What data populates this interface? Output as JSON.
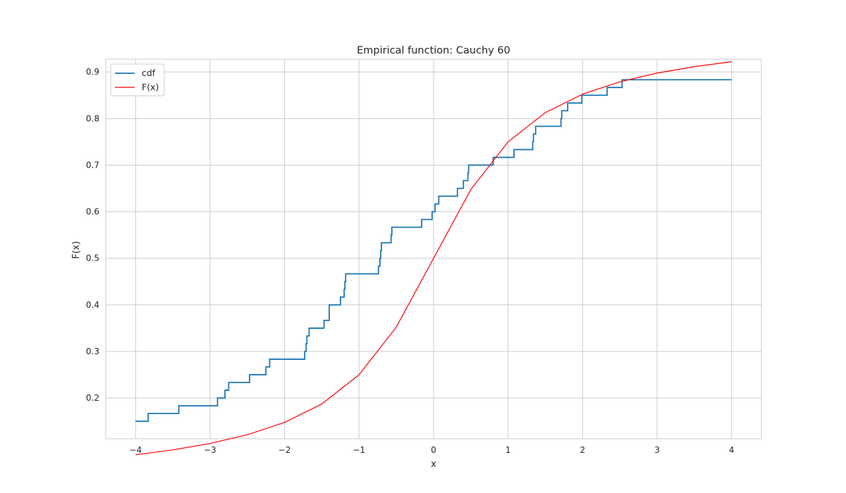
{
  "chart_data": {
    "type": "line",
    "title": "Empirical function: Cauchy 60",
    "xlabel": "x",
    "ylabel": "F(x)",
    "xlim": [
      -4.4,
      4.4
    ],
    "ylim": [
      0.1125,
      0.9275
    ],
    "xticks": [
      -4,
      -3,
      -2,
      -1,
      0,
      1,
      2,
      3,
      4
    ],
    "xtick_labels": [
      "−4",
      "−3",
      "−2",
      "−1",
      "0",
      "1",
      "2",
      "3",
      "4"
    ],
    "yticks": [
      0.2,
      0.3,
      0.4,
      0.5,
      0.6,
      0.7,
      0.8,
      0.9
    ],
    "ytick_labels": [
      "0.2",
      "0.3",
      "0.4",
      "0.5",
      "0.6",
      "0.7",
      "0.8",
      "0.9"
    ],
    "grid": true,
    "legend_position": "top-left",
    "series": [
      {
        "name": "cdf",
        "kind": "step",
        "color": "#1f77b4",
        "x": [
          -4.0,
          -3.83,
          -3.42,
          -2.9,
          -2.8,
          -2.75,
          -2.72,
          -2.47,
          -2.25,
          -2.2,
          -1.75,
          -1.73,
          -1.71,
          -1.7,
          -1.67,
          -1.5,
          -1.47,
          -1.46,
          -1.4,
          -1.25,
          -1.2,
          -1.19,
          -1.18,
          -0.74,
          -0.72,
          -0.71,
          -0.7,
          -0.68,
          -0.57,
          -0.56,
          -0.55,
          -0.16,
          -0.02,
          0.02,
          0.07,
          0.32,
          0.4,
          0.46,
          0.47,
          0.48,
          0.8,
          1.08,
          1.33,
          1.34,
          1.37,
          1.42,
          1.71,
          1.72,
          1.74,
          1.76,
          1.8,
          1.99,
          2.33,
          2.53,
          4.0
        ],
        "y": [
          0.15,
          0.1667,
          0.1833,
          0.2,
          0.2167,
          0.2333,
          0.2333,
          0.25,
          0.2667,
          0.2833,
          0.2833,
          0.3,
          0.3167,
          0.3333,
          0.35,
          0.35,
          0.3667,
          0.3667,
          0.4,
          0.4167,
          0.4333,
          0.45,
          0.4667,
          0.4833,
          0.5,
          0.5167,
          0.5333,
          0.5333,
          0.55,
          0.5667,
          0.5667,
          0.5833,
          0.6,
          0.6167,
          0.6333,
          0.65,
          0.6667,
          0.6833,
          0.7,
          0.7,
          0.7167,
          0.7333,
          0.75,
          0.7667,
          0.7833,
          0.7833,
          0.8,
          0.8167,
          0.8167,
          0.8167,
          0.8333,
          0.85,
          0.8667,
          0.8833,
          0.8833
        ]
      },
      {
        "name": "F(x)",
        "kind": "line",
        "color": "#ff0000",
        "x": [
          -4.0,
          -3.5,
          -3.0,
          -2.5,
          -2.0,
          -1.5,
          -1.0,
          -0.5,
          0.0,
          0.5,
          1.0,
          1.5,
          2.0,
          2.5,
          3.0,
          3.5,
          4.0
        ],
        "y": [
          0.078,
          0.0886,
          0.1024,
          0.1211,
          0.1476,
          0.1872,
          0.25,
          0.3524,
          0.5,
          0.6476,
          0.75,
          0.8128,
          0.8524,
          0.8789,
          0.8976,
          0.9114,
          0.922
        ]
      }
    ]
  }
}
